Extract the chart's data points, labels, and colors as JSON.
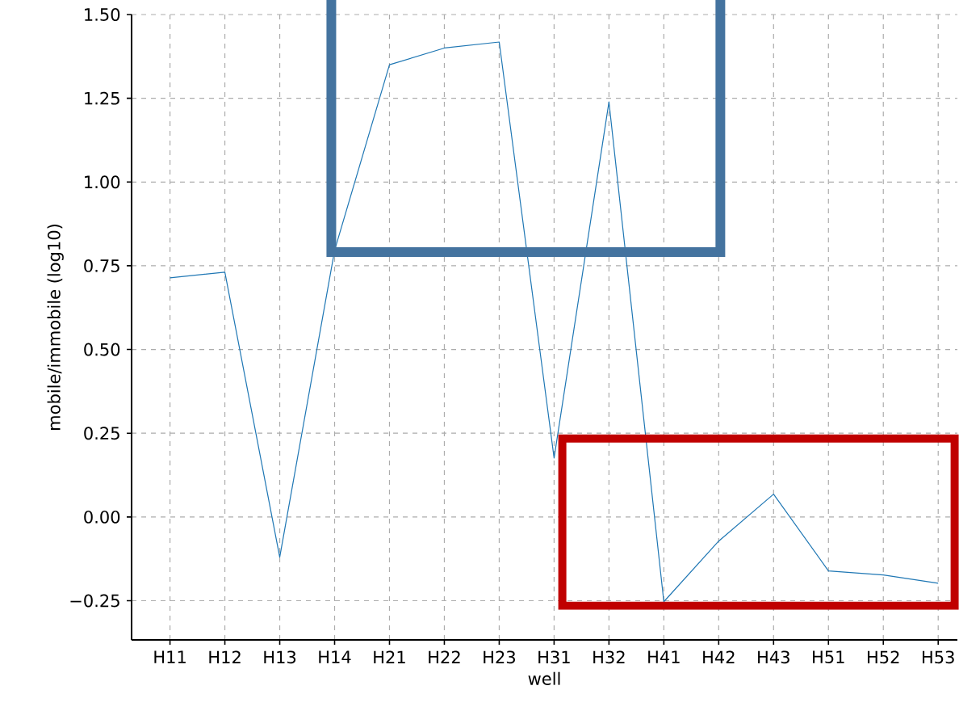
{
  "chart_data": {
    "type": "line",
    "xlabel": "well",
    "ylabel": "mobile/immobile (log10)",
    "categories": [
      "H11",
      "H12",
      "H13",
      "H14",
      "H21",
      "H22",
      "H23",
      "H31",
      "H32",
      "H41",
      "H42",
      "H43",
      "H51",
      "H52",
      "H53"
    ],
    "values": [
      0.714,
      0.731,
      -0.12,
      0.796,
      1.35,
      1.4,
      1.418,
      0.176,
      1.239,
      -0.253,
      -0.072,
      0.068,
      -0.161,
      -0.173,
      -0.198
    ],
    "color": "#1f77b4",
    "line_style": "solid",
    "marker": "none",
    "grid": true,
    "ylim": [
      -0.367,
      1.5
    ],
    "yticks": [
      {
        "value": -0.25,
        "label": "−0.25"
      },
      {
        "value": 0,
        "label": "0.00"
      },
      {
        "value": 0.25,
        "label": "0.25"
      },
      {
        "value": 0.5,
        "label": "0.50"
      },
      {
        "value": 0.75,
        "label": "0.75"
      },
      {
        "value": 1.0,
        "label": "1.00"
      },
      {
        "value": 1.25,
        "label": "1.25"
      },
      {
        "value": 1.5,
        "label": "1.50"
      }
    ]
  }
}
